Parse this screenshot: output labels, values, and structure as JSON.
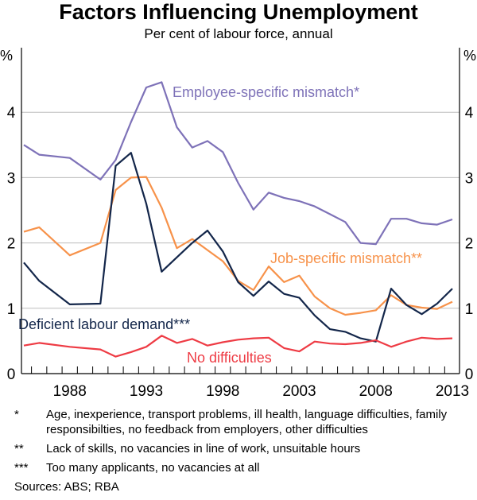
{
  "chart_data": {
    "type": "line",
    "title": "Factors Influencing Unemployment",
    "subtitle": "Per cent of labour force, annual",
    "ylabel_left": "%",
    "ylabel_right": "%",
    "ylim": [
      0,
      5
    ],
    "yticks": [
      0,
      1,
      2,
      3,
      4
    ],
    "xlim": [
      1984.5,
      2013.5
    ],
    "xtick_labels": [
      "1988",
      "1993",
      "1998",
      "2003",
      "2008",
      "2013"
    ],
    "grid": true,
    "x": [
      1985,
      1986,
      1988,
      1990,
      1991,
      1992,
      1993,
      1994,
      1995,
      1996,
      1997,
      1998,
      1999,
      2000,
      2001,
      2002,
      2003,
      2004,
      2005,
      2006,
      2007,
      2008,
      2009,
      2010,
      2011,
      2012,
      2013
    ],
    "series": [
      {
        "name": "Employee-specific mismatch*",
        "color": "#7e72b8",
        "values": [
          3.5,
          3.35,
          3.3,
          2.97,
          3.27,
          3.85,
          4.38,
          4.46,
          3.77,
          3.46,
          3.56,
          3.39,
          2.92,
          2.51,
          2.77,
          2.69,
          2.64,
          2.56,
          2.44,
          2.32,
          2.0,
          1.98,
          2.37,
          2.37,
          2.3,
          2.28,
          2.36
        ]
      },
      {
        "name": "Job-specific mismatch**",
        "color": "#f7924a",
        "values": [
          2.17,
          2.24,
          1.81,
          2.0,
          2.81,
          3.0,
          3.01,
          2.54,
          1.92,
          2.06,
          1.89,
          1.72,
          1.42,
          1.28,
          1.64,
          1.4,
          1.5,
          1.18,
          1.0,
          0.9,
          0.93,
          0.97,
          1.2,
          1.05,
          1.01,
          0.99,
          1.1
        ]
      },
      {
        "name": "Deficient labour demand***",
        "color": "#13264a",
        "values": [
          1.7,
          1.42,
          1.06,
          1.07,
          3.18,
          3.38,
          2.6,
          1.56,
          1.78,
          2.0,
          2.19,
          1.87,
          1.4,
          1.19,
          1.41,
          1.22,
          1.16,
          0.89,
          0.68,
          0.64,
          0.54,
          0.49,
          1.3,
          1.05,
          0.91,
          1.07,
          1.3
        ]
      },
      {
        "name": "No difficulties",
        "color": "#ee3b44",
        "values": [
          0.43,
          0.47,
          0.41,
          0.37,
          0.26,
          0.33,
          0.41,
          0.58,
          0.47,
          0.53,
          0.43,
          0.48,
          0.52,
          0.54,
          0.55,
          0.39,
          0.34,
          0.49,
          0.46,
          0.45,
          0.47,
          0.51,
          0.41,
          0.49,
          0.55,
          0.53,
          0.54
        ]
      }
    ]
  },
  "footnotes": [
    {
      "mark": "*",
      "text": "Age, inexperience, transport problems, ill health, language difficulties, family responsibilties, no feedback from employers, other difficulties"
    },
    {
      "mark": "**",
      "text": "Lack of skills, no vacancies in line of work, unsuitable hours"
    },
    {
      "mark": "***",
      "text": "Too many applicants, no vacancies at all"
    }
  ],
  "sources": "Sources:  ABS; RBA"
}
